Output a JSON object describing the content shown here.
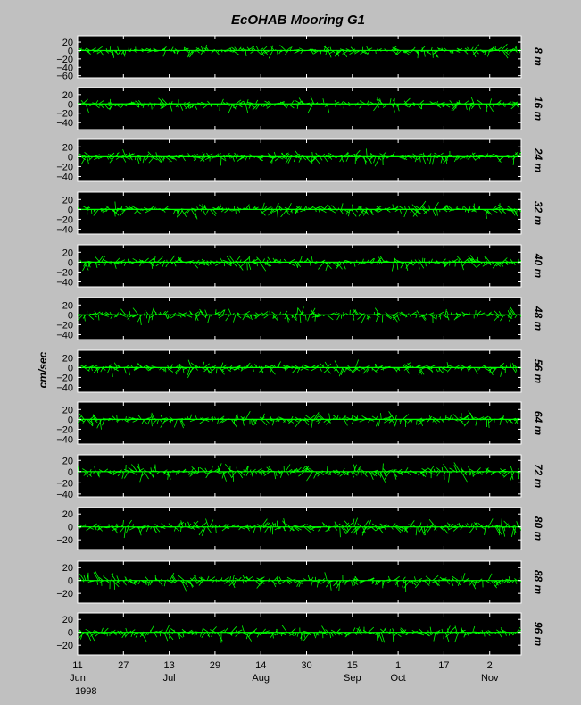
{
  "chart_data": {
    "type": "line",
    "title": "EcOHAB Mooring G1",
    "ylabel": "cm/sec",
    "year_label": "1998",
    "x_ticks": [
      {
        "day": "11",
        "month": "Jun",
        "date": "1998-06-11"
      },
      {
        "day": "27",
        "month": "",
        "date": "1998-06-27"
      },
      {
        "day": "13",
        "month": "Jul",
        "date": "1998-07-13"
      },
      {
        "day": "29",
        "month": "",
        "date": "1998-07-29"
      },
      {
        "day": "14",
        "month": "Aug",
        "date": "1998-08-14"
      },
      {
        "day": "30",
        "month": "",
        "date": "1998-08-30"
      },
      {
        "day": "15",
        "month": "Sep",
        "date": "1998-09-15"
      },
      {
        "day": "1",
        "month": "Oct",
        "date": "1998-10-01"
      },
      {
        "day": "17",
        "month": "",
        "date": "1998-10-17"
      },
      {
        "day": "2",
        "month": "Nov",
        "date": "1998-11-02"
      }
    ],
    "xlim": [
      "1998-06-11",
      "1998-11-13"
    ],
    "grid": false,
    "series_color": "#00ff00",
    "panels": [
      {
        "depth": "8 m",
        "ylim": [
          -65,
          35
        ],
        "yticks": [
          "20",
          "0",
          "−20",
          "−40",
          "−60"
        ],
        "ytick_values": [
          20,
          0,
          -20,
          -40,
          -60
        ]
      },
      {
        "depth": "16 m",
        "ylim": [
          -55,
          35
        ],
        "yticks": [
          "20",
          "0",
          "−20",
          "−40"
        ],
        "ytick_values": [
          20,
          0,
          -20,
          -40
        ]
      },
      {
        "depth": "24 m",
        "ylim": [
          -50,
          35
        ],
        "yticks": [
          "20",
          "0",
          "−20",
          "−40"
        ],
        "ytick_values": [
          20,
          0,
          -20,
          -40
        ]
      },
      {
        "depth": "32 m",
        "ylim": [
          -50,
          35
        ],
        "yticks": [
          "20",
          "0",
          "−20",
          "−40"
        ],
        "ytick_values": [
          20,
          0,
          -20,
          -40
        ]
      },
      {
        "depth": "40 m",
        "ylim": [
          -50,
          35
        ],
        "yticks": [
          "20",
          "0",
          "−20",
          "−40"
        ],
        "ytick_values": [
          20,
          0,
          -20,
          -40
        ]
      },
      {
        "depth": "48 m",
        "ylim": [
          -50,
          35
        ],
        "yticks": [
          "20",
          "0",
          "−20",
          "−40"
        ],
        "ytick_values": [
          20,
          0,
          -20,
          -40
        ]
      },
      {
        "depth": "56 m",
        "ylim": [
          -50,
          35
        ],
        "yticks": [
          "20",
          "0",
          "−20",
          "−40"
        ],
        "ytick_values": [
          20,
          0,
          -20,
          -40
        ]
      },
      {
        "depth": "64 m",
        "ylim": [
          -50,
          35
        ],
        "yticks": [
          "20",
          "0",
          "−20",
          "−40"
        ],
        "ytick_values": [
          20,
          0,
          -20,
          -40
        ]
      },
      {
        "depth": "72 m",
        "ylim": [
          -45,
          30
        ],
        "yticks": [
          "20",
          "0",
          "−20",
          "−40"
        ],
        "ytick_values": [
          20,
          0,
          -20,
          -40
        ]
      },
      {
        "depth": "80 m",
        "ylim": [
          -35,
          30
        ],
        "yticks": [
          "20",
          "0",
          "−20"
        ],
        "ytick_values": [
          20,
          0,
          -20
        ]
      },
      {
        "depth": "88 m",
        "ylim": [
          -35,
          30
        ],
        "yticks": [
          "20",
          "0",
          "−20"
        ],
        "ytick_values": [
          20,
          0,
          -20
        ]
      },
      {
        "depth": "96 m",
        "ylim": [
          -35,
          30
        ],
        "yticks": [
          "20",
          "0",
          "−20"
        ],
        "ytick_values": [
          20,
          0,
          -20
        ]
      }
    ]
  }
}
